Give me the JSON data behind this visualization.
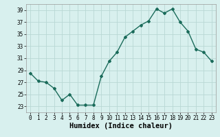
{
  "x": [
    0,
    1,
    2,
    3,
    4,
    5,
    6,
    7,
    8,
    9,
    10,
    11,
    12,
    13,
    14,
    15,
    16,
    17,
    18,
    19,
    20,
    21,
    22,
    23
  ],
  "y": [
    28.5,
    27.2,
    27.0,
    26.0,
    24.0,
    25.0,
    23.2,
    23.2,
    23.2,
    28.0,
    30.5,
    32.0,
    34.5,
    35.5,
    36.5,
    37.2,
    39.2,
    38.5,
    39.2,
    37.0,
    35.5,
    32.5,
    32.0,
    30.5
  ],
  "line_color": "#1a6b5a",
  "marker": "D",
  "marker_size": 2,
  "bg_color": "#d8f0ee",
  "grid_color": "#b8d8d4",
  "xlabel": "Humidex (Indice chaleur)",
  "ylim": [
    22,
    40
  ],
  "xlim": [
    -0.5,
    23.5
  ],
  "yticks": [
    23,
    25,
    27,
    29,
    31,
    33,
    35,
    37,
    39
  ],
  "xticks": [
    0,
    1,
    2,
    3,
    4,
    5,
    6,
    7,
    8,
    9,
    10,
    11,
    12,
    13,
    14,
    15,
    16,
    17,
    18,
    19,
    20,
    21,
    22,
    23
  ],
  "tick_label_fontsize": 5.5,
  "xlabel_fontsize": 7.5,
  "line_width": 1.0
}
